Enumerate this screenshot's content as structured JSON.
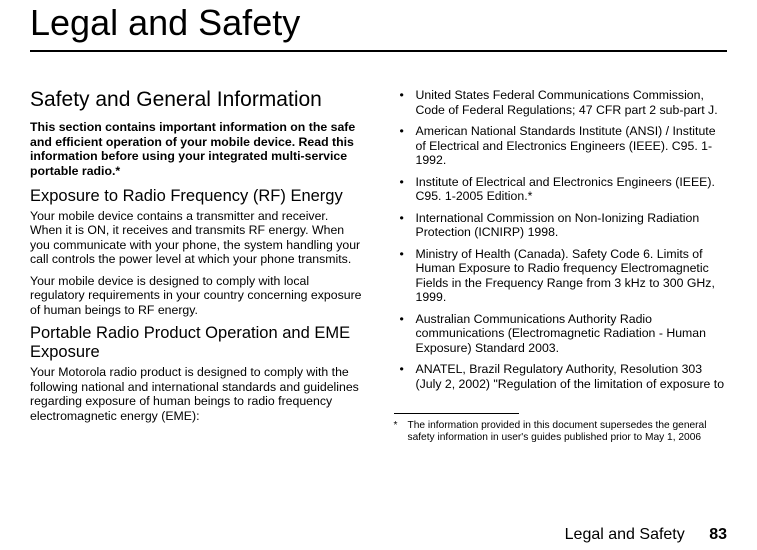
{
  "main_title": "Legal and Safety",
  "left": {
    "section_heading": "Safety and General Information",
    "intro": "This section contains important information on the safe and efficient operation of your mobile device. Read this information before using your integrated multi-service portable radio.*",
    "sub1": "Exposure to Radio Frequency (RF) Energy",
    "p1": "Your mobile device contains a transmitter and receiver. When it is ON, it receives and transmits RF energy. When you communicate with your phone, the system handling your call controls the power level at which your phone transmits.",
    "p2": "Your mobile device is designed to comply with local regulatory requirements in your country concerning exposure of human beings to RF energy.",
    "sub2": "Portable Radio Product Operation and EME Exposure",
    "p3": "Your Motorola radio product is designed to comply with the following national and international standards and guidelines regarding exposure of human beings to radio frequency electromagnetic energy (EME):"
  },
  "right": {
    "bullets": [
      "United States Federal Communications Commission, Code of Federal Regulations; 47 CFR part 2 sub-part J.",
      "American National Standards Institute (ANSI) / Institute of Electrical and Electronics Engineers (IEEE). C95. 1-1992.",
      "Institute of Electrical and Electronics Engineers (IEEE). C95. 1-2005 Edition.*",
      "International Commission on Non-Ionizing Radiation Protection (ICNIRP) 1998.",
      "Ministry of Health (Canada). Safety Code 6. Limits of Human Exposure to Radio frequency Electromagnetic Fields in the Frequency Range from 3 kHz to 300 GHz, 1999.",
      "Australian Communications Authority Radio communications (Electromagnetic Radiation - Human Exposure) Standard 2003.",
      "ANATEL, Brazil Regulatory Authority, Resolution 303 (July 2, 2002) \"Regulation of the limitation of exposure to"
    ],
    "footnote_star": "*",
    "footnote": "The information provided in this document supersedes the general safety information in user's guides published prior to May 1, 2006"
  },
  "footer": {
    "label": "Legal and Safety",
    "page": "83"
  }
}
